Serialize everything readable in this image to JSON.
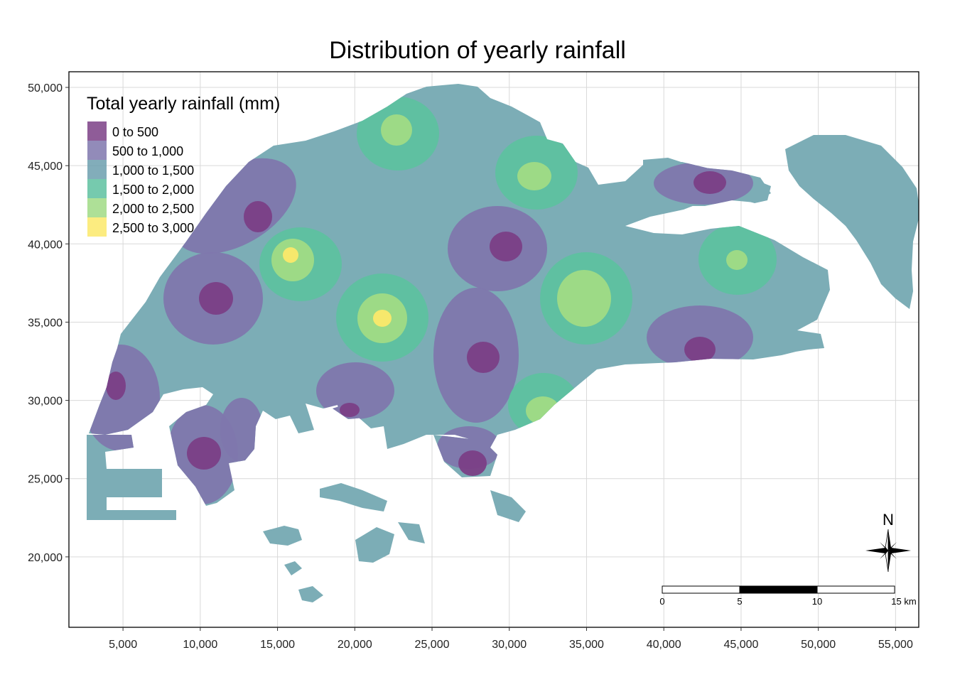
{
  "title": "Distribution of yearly rainfall",
  "x_axis": {
    "ticks": [
      "5,000",
      "10,000",
      "15,000",
      "20,000",
      "25,000",
      "30,000",
      "35,000",
      "40,000",
      "45,000",
      "50,000",
      "55,000"
    ],
    "range": [
      1500,
      56500
    ]
  },
  "y_axis": {
    "ticks": [
      "20,000",
      "25,000",
      "30,000",
      "35,000",
      "40,000",
      "45,000",
      "50,000"
    ],
    "range": [
      15500,
      51000
    ]
  },
  "legend": {
    "title": "Total yearly rainfall (mm)",
    "items": [
      {
        "label": "0 to 500",
        "color": "#7b3f86"
      },
      {
        "label": "500 to 1,000",
        "color": "#7f77ad"
      },
      {
        "label": "1,000 to 1,500",
        "color": "#6c9fae"
      },
      {
        "label": "1,500 to 2,000",
        "color": "#5ec1a0"
      },
      {
        "label": "2,000 to 2,500",
        "color": "#a0db85"
      },
      {
        "label": "2,500 to 3,000",
        "color": "#fbe96a"
      }
    ]
  },
  "scale_bar": {
    "labels": [
      "0",
      "5",
      "10",
      "15 km"
    ]
  },
  "north_arrow": {
    "label": "N"
  },
  "colors": {
    "land_base": "#7cadb6",
    "grid": "#d9d9d9",
    "panel_border": "#000000"
  }
}
